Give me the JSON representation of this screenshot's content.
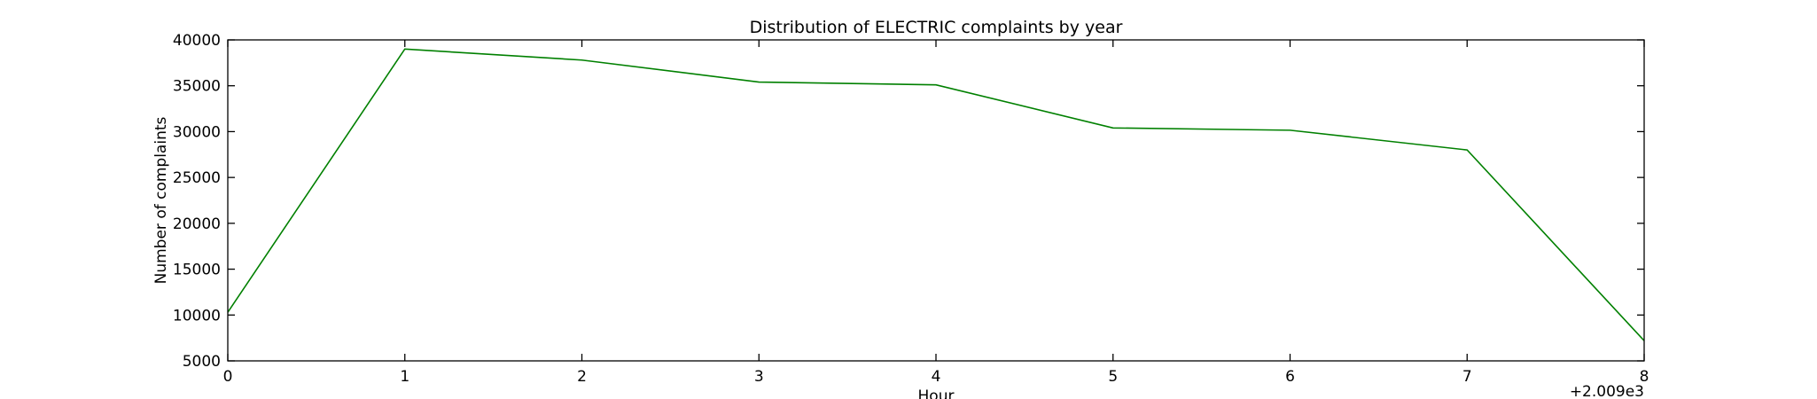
{
  "chart_data": {
    "type": "line",
    "title": "Distribution of  ELECTRIC complaints by year",
    "xlabel": "Hour",
    "ylabel": "Number of complaints",
    "x_offset_label": "+2.009e3",
    "xlim": [
      0,
      8
    ],
    "ylim": [
      5000,
      40000
    ],
    "x_ticks": [
      "0",
      "1",
      "2",
      "3",
      "4",
      "5",
      "6",
      "7",
      "8"
    ],
    "y_ticks": [
      "5000",
      "10000",
      "15000",
      "20000",
      "25000",
      "30000",
      "35000",
      "40000"
    ],
    "grid": false,
    "legend": "none",
    "series": [
      {
        "color": "#008000",
        "x": [
          0,
          1,
          2,
          3,
          4,
          5,
          6,
          7,
          8
        ],
        "values": [
          10300,
          39000,
          37800,
          35400,
          35100,
          30400,
          30150,
          28000,
          7200
        ]
      }
    ]
  }
}
